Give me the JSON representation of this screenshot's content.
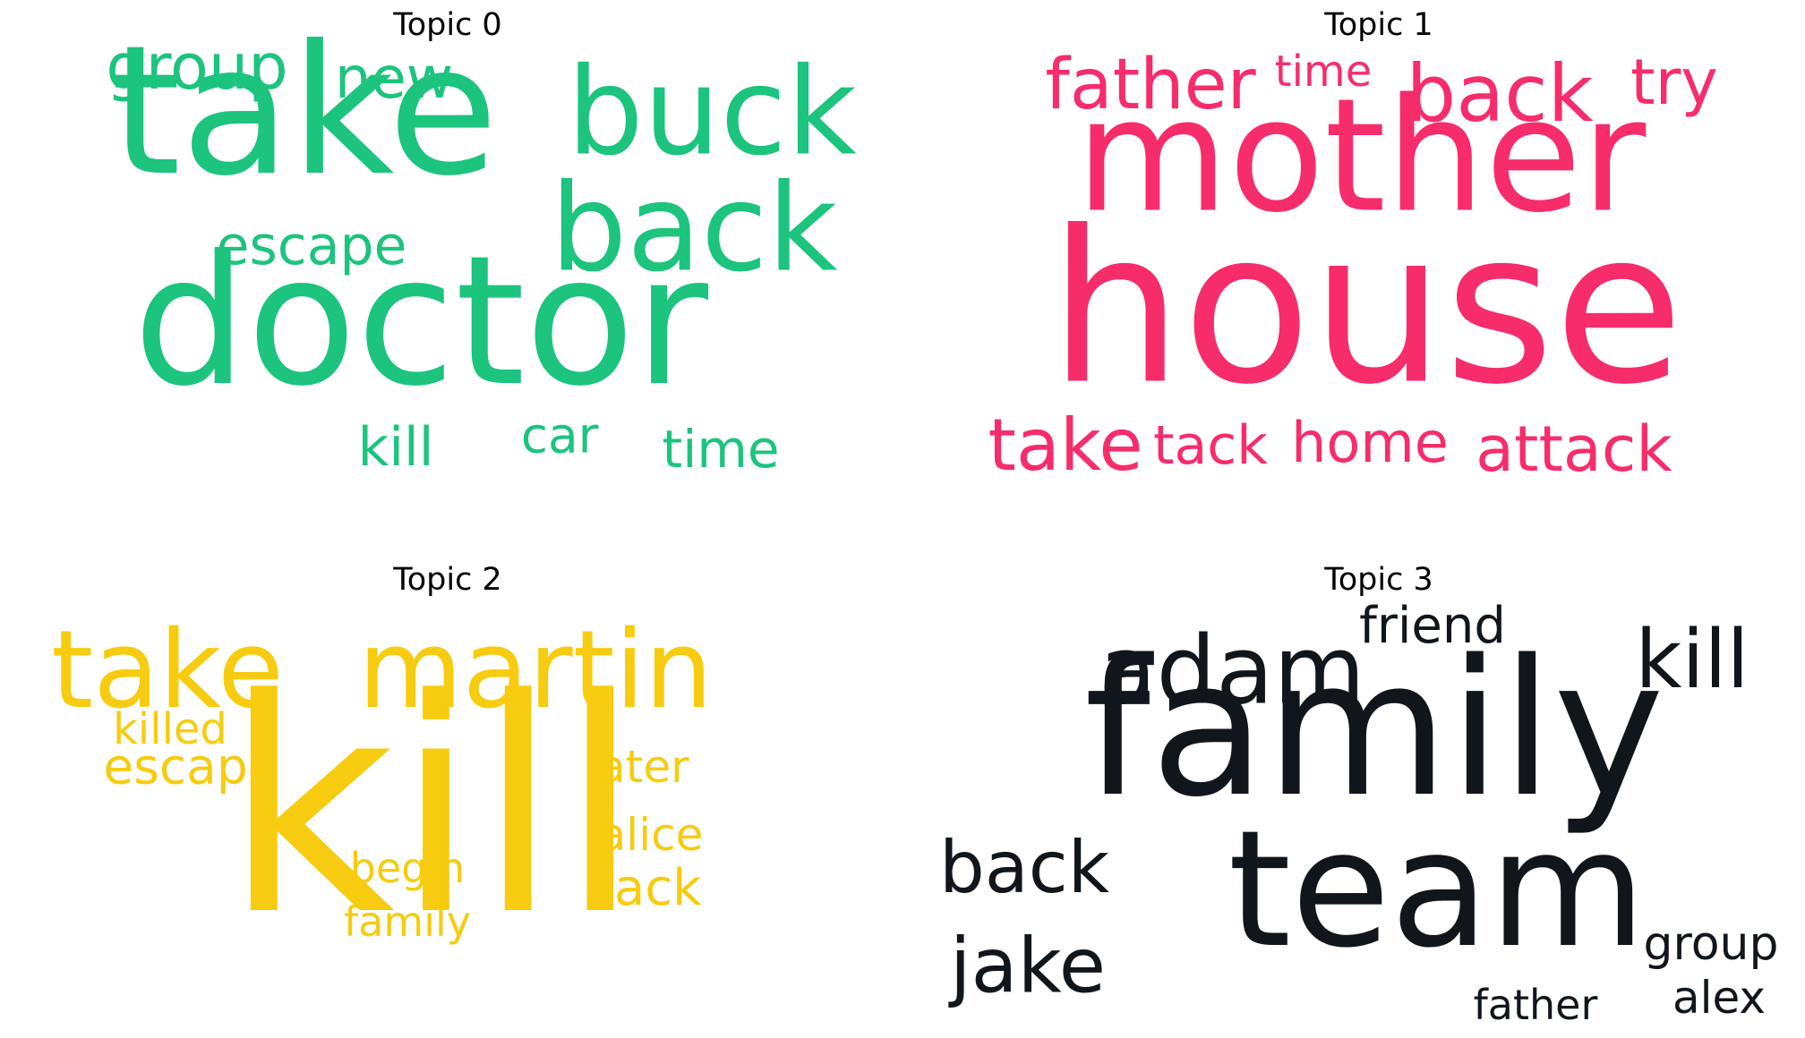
{
  "figure": {
    "topics": [
      {
        "title": "Topic 0",
        "color": "#1cc47e",
        "words": [
          "take",
          "doctor",
          "buck",
          "back",
          "group",
          "new",
          "escape",
          "kill",
          "car",
          "time"
        ]
      },
      {
        "title": "Topic 1",
        "color": "#f72d6b",
        "words": [
          "house",
          "mother",
          "father",
          "time",
          "back",
          "try",
          "take",
          "tack",
          "home",
          "attack"
        ]
      },
      {
        "title": "Topic 2",
        "color": "#f7cc10",
        "words": [
          "kill",
          "take",
          "martin",
          "killed",
          "escape",
          "later",
          "alice",
          "begin",
          "back",
          "family"
        ]
      },
      {
        "title": "Topic 3",
        "color": "#11161c",
        "words": [
          "family",
          "team",
          "adam",
          "friend",
          "kill",
          "back",
          "jake",
          "group",
          "father",
          "alex"
        ]
      }
    ]
  }
}
